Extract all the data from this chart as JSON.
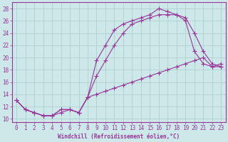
{
  "xlabel": "Windchill (Refroidissement éolien,°C)",
  "bg_color": "#cce8e8",
  "grid_color": "#aacccc",
  "line_color": "#993399",
  "xlim": [
    -0.5,
    23.5
  ],
  "ylim": [
    9.5,
    29.0
  ],
  "xticks": [
    0,
    1,
    2,
    3,
    4,
    5,
    6,
    7,
    8,
    9,
    10,
    11,
    12,
    13,
    14,
    15,
    16,
    17,
    18,
    19,
    20,
    21,
    22,
    23
  ],
  "yticks": [
    10,
    12,
    14,
    16,
    18,
    20,
    22,
    24,
    26,
    28
  ],
  "line1_y": [
    13,
    11.5,
    11,
    10.5,
    10.5,
    11.5,
    11.5,
    11,
    13.5,
    19.5,
    22,
    24.5,
    25.5,
    26,
    26.5,
    27,
    28,
    27.5,
    27,
    26,
    21,
    19,
    18.5,
    18.5
  ],
  "line2_y": [
    13,
    11.5,
    11,
    10.5,
    10.5,
    11.5,
    11.5,
    11,
    13.5,
    17,
    19.5,
    22,
    24,
    25.5,
    26,
    26.5,
    27,
    27,
    27,
    26.5,
    24,
    21,
    19,
    18.5
  ],
  "line3_y": [
    13,
    11.5,
    11,
    10.5,
    10.5,
    11,
    11.5,
    11,
    13.5,
    14,
    14.5,
    15,
    15.5,
    16,
    16.5,
    17,
    17.5,
    18,
    18.5,
    19,
    19.5,
    20,
    18.5,
    19
  ],
  "marker_size": 2.5,
  "linewidth": 0.8,
  "tick_fontsize": 5.5,
  "xlabel_fontsize": 5.5
}
